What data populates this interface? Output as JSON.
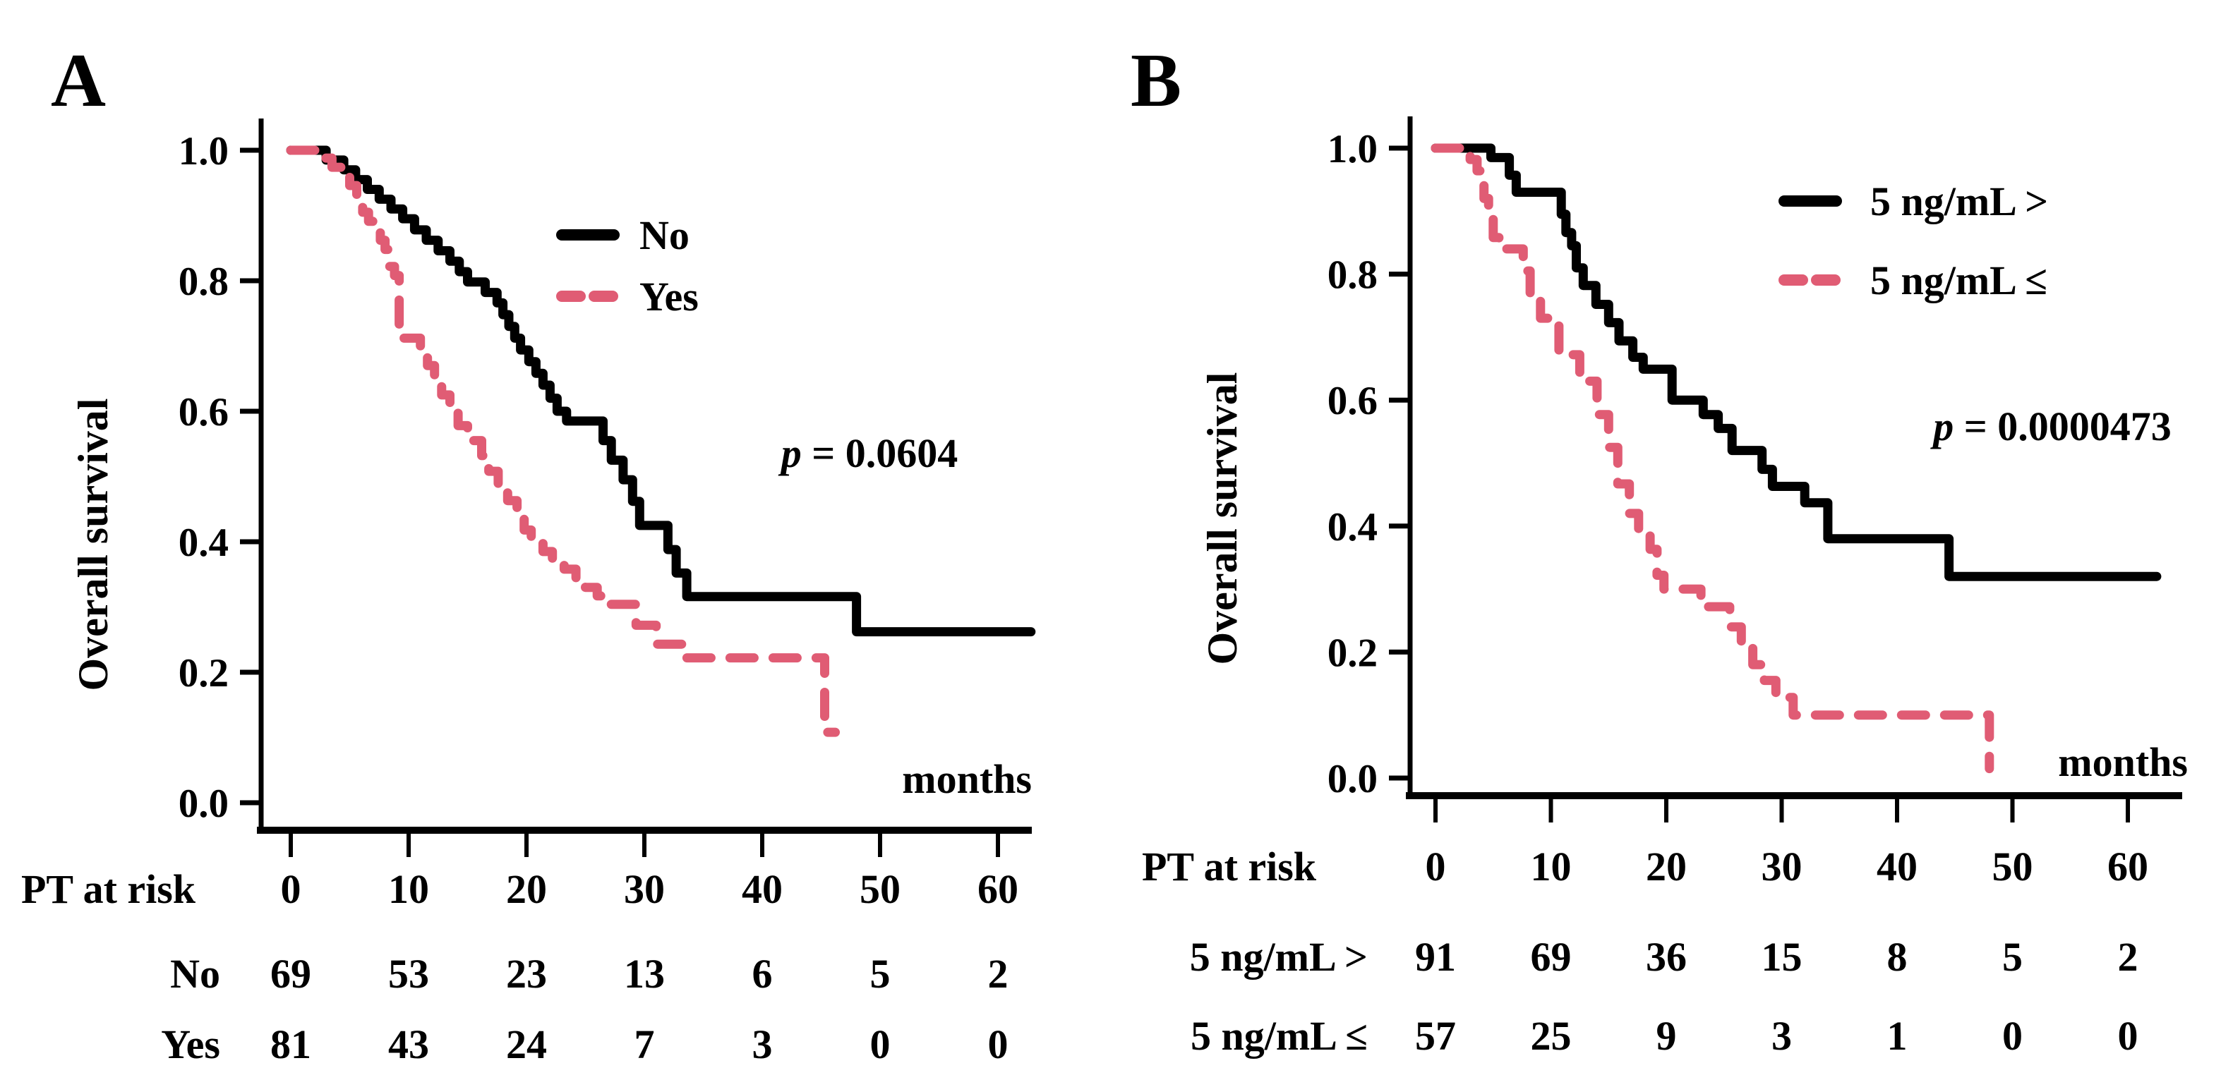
{
  "figure": {
    "background": "#ffffff",
    "curve_color_black": "#000000",
    "curve_color_pink": "#e05c74"
  },
  "chart_data": [
    {
      "type": "line",
      "subtype": "kaplan-meier-step",
      "panel_label": "A",
      "title": "",
      "xlabel": "months",
      "ylabel": "Overall survival",
      "xlim": [
        0,
        64
      ],
      "ylim": [
        0.0,
        1.0
      ],
      "grid": false,
      "legend_position": "upper-right-inside",
      "x_tick_labels": [
        "0",
        "10",
        "20",
        "30",
        "40",
        "50",
        "60"
      ],
      "y_tick_labels": [
        "1.0",
        "0.8",
        "0.6",
        "0.4",
        "0.2",
        "0.0"
      ],
      "p_label": "p",
      "p_equals": " = 0.0604",
      "series": [
        {
          "name": "No",
          "color_key": "curve_color_black",
          "line_style": "solid",
          "points": [
            [
              0,
              1.0
            ],
            [
              3.0,
              0.985
            ],
            [
              4.5,
              0.97
            ],
            [
              5.5,
              0.955
            ],
            [
              6.5,
              0.94
            ],
            [
              7.5,
              0.925
            ],
            [
              8.5,
              0.91
            ],
            [
              9.5,
              0.895
            ],
            [
              10.5,
              0.878
            ],
            [
              11.5,
              0.862
            ],
            [
              12.5,
              0.846
            ],
            [
              13.5,
              0.83
            ],
            [
              14.3,
              0.814
            ],
            [
              15.0,
              0.798
            ],
            [
              16.5,
              0.782
            ],
            [
              17.5,
              0.766
            ],
            [
              18.0,
              0.748
            ],
            [
              18.5,
              0.73
            ],
            [
              19.0,
              0.712
            ],
            [
              19.5,
              0.694
            ],
            [
              20.2,
              0.676
            ],
            [
              20.8,
              0.658
            ],
            [
              21.4,
              0.64
            ],
            [
              22.0,
              0.62
            ],
            [
              22.6,
              0.6
            ],
            [
              23.4,
              0.585
            ],
            [
              26.5,
              0.555
            ],
            [
              27.2,
              0.525
            ],
            [
              28.2,
              0.495
            ],
            [
              29.0,
              0.462
            ],
            [
              29.6,
              0.425
            ],
            [
              32.0,
              0.388
            ],
            [
              32.7,
              0.352
            ],
            [
              33.6,
              0.316
            ],
            [
              48.0,
              0.262
            ],
            [
              62.8,
              0.262
            ]
          ]
        },
        {
          "name": "Yes",
          "color_key": "curve_color_pink",
          "line_style": "dashed",
          "points": [
            [
              0,
              1.0
            ],
            [
              2.5,
              0.988
            ],
            [
              3.5,
              0.974
            ],
            [
              4.3,
              0.96
            ],
            [
              5.0,
              0.946
            ],
            [
              5.6,
              0.932
            ],
            [
              6.1,
              0.905
            ],
            [
              6.6,
              0.891
            ],
            [
              7.1,
              0.877
            ],
            [
              7.6,
              0.862
            ],
            [
              8.0,
              0.848
            ],
            [
              8.4,
              0.822
            ],
            [
              8.8,
              0.808
            ],
            [
              9.2,
              0.712
            ],
            [
              11.0,
              0.698
            ],
            [
              11.6,
              0.67
            ],
            [
              12.2,
              0.648
            ],
            [
              12.8,
              0.625
            ],
            [
              13.5,
              0.602
            ],
            [
              14.2,
              0.578
            ],
            [
              15.0,
              0.555
            ],
            [
              16.2,
              0.532
            ],
            [
              16.8,
              0.508
            ],
            [
              17.6,
              0.486
            ],
            [
              18.4,
              0.463
            ],
            [
              19.2,
              0.44
            ],
            [
              19.8,
              0.418
            ],
            [
              20.4,
              0.398
            ],
            [
              21.4,
              0.385
            ],
            [
              22.2,
              0.372
            ],
            [
              23.2,
              0.358
            ],
            [
              24.2,
              0.344
            ],
            [
              25.0,
              0.33
            ],
            [
              26.0,
              0.317
            ],
            [
              27.0,
              0.304
            ],
            [
              29.3,
              0.272
            ],
            [
              31.0,
              0.243
            ],
            [
              33.3,
              0.222
            ],
            [
              45.3,
              0.108
            ],
            [
              46.2,
              0.108
            ]
          ]
        }
      ],
      "risk_table": {
        "header": "PT at risk",
        "time_points": [
          "0",
          "10",
          "20",
          "30",
          "40",
          "50",
          "60"
        ],
        "rows": [
          {
            "label": "No",
            "counts": [
              "69",
              "53",
              "23",
              "13",
              "6",
              "5",
              "2"
            ]
          },
          {
            "label": "Yes",
            "counts": [
              "81",
              "43",
              "24",
              "7",
              "3",
              "0",
              "0"
            ]
          }
        ]
      }
    },
    {
      "type": "line",
      "subtype": "kaplan-meier-step",
      "panel_label": "B",
      "title": "",
      "xlabel": "months",
      "ylabel": "Overall survival",
      "xlim": [
        0,
        64
      ],
      "ylim": [
        0.0,
        1.0
      ],
      "grid": false,
      "legend_position": "upper-right-inside",
      "x_tick_labels": [
        "0",
        "10",
        "20",
        "30",
        "40",
        "50",
        "60"
      ],
      "y_tick_labels": [
        "1.0",
        "0.8",
        "0.6",
        "0.4",
        "0.2",
        "0.0"
      ],
      "p_label": "p",
      "p_equals": " = 0.0000473",
      "series": [
        {
          "name": "5 ng/mL >",
          "color_key": "curve_color_black",
          "line_style": "solid",
          "points": [
            [
              0,
              1.0
            ],
            [
              4.8,
              0.985
            ],
            [
              6.4,
              0.957
            ],
            [
              7.0,
              0.93
            ],
            [
              10.9,
              0.895
            ],
            [
              11.3,
              0.866
            ],
            [
              11.8,
              0.845
            ],
            [
              12.2,
              0.81
            ],
            [
              12.8,
              0.782
            ],
            [
              13.9,
              0.752
            ],
            [
              15.0,
              0.723
            ],
            [
              15.9,
              0.694
            ],
            [
              17.1,
              0.668
            ],
            [
              18.0,
              0.649
            ],
            [
              20.5,
              0.6
            ],
            [
              23.2,
              0.577
            ],
            [
              24.5,
              0.555
            ],
            [
              25.7,
              0.52
            ],
            [
              28.3,
              0.49
            ],
            [
              29.2,
              0.463
            ],
            [
              32.0,
              0.437
            ],
            [
              34.0,
              0.38
            ],
            [
              44.5,
              0.32
            ],
            [
              62.5,
              0.32
            ]
          ]
        },
        {
          "name": "5 ng/mL ≤",
          "color_key": "curve_color_pink",
          "line_style": "dashed",
          "points": [
            [
              0,
              1.0
            ],
            [
              3.0,
              0.982
            ],
            [
              3.6,
              0.964
            ],
            [
              4.2,
              0.92
            ],
            [
              4.6,
              0.894
            ],
            [
              5.0,
              0.858
            ],
            [
              5.5,
              0.84
            ],
            [
              7.6,
              0.805
            ],
            [
              8.2,
              0.77
            ],
            [
              9.1,
              0.73
            ],
            [
              10.7,
              0.672
            ],
            [
              12.5,
              0.63
            ],
            [
              14.0,
              0.577
            ],
            [
              15.0,
              0.525
            ],
            [
              15.8,
              0.467
            ],
            [
              16.8,
              0.42
            ],
            [
              17.6,
              0.39
            ],
            [
              18.6,
              0.363
            ],
            [
              19.2,
              0.322
            ],
            [
              19.8,
              0.3
            ],
            [
              23.0,
              0.272
            ],
            [
              25.5,
              0.24
            ],
            [
              26.5,
              0.21
            ],
            [
              27.5,
              0.18
            ],
            [
              28.5,
              0.155
            ],
            [
              29.5,
              0.128
            ],
            [
              31.0,
              0.1
            ],
            [
              48.0,
              0.015
            ]
          ]
        }
      ],
      "risk_table": {
        "header": "PT at risk",
        "time_points": [
          "0",
          "10",
          "20",
          "30",
          "40",
          "50",
          "60"
        ],
        "rows": [
          {
            "label": "5 ng/mL >",
            "counts": [
              "91",
              "69",
              "36",
              "15",
              "8",
              "5",
              "2"
            ]
          },
          {
            "label": "5 ng/mL ≤",
            "counts": [
              "57",
              "25",
              "9",
              "3",
              "1",
              "0",
              "0"
            ]
          }
        ]
      }
    }
  ]
}
